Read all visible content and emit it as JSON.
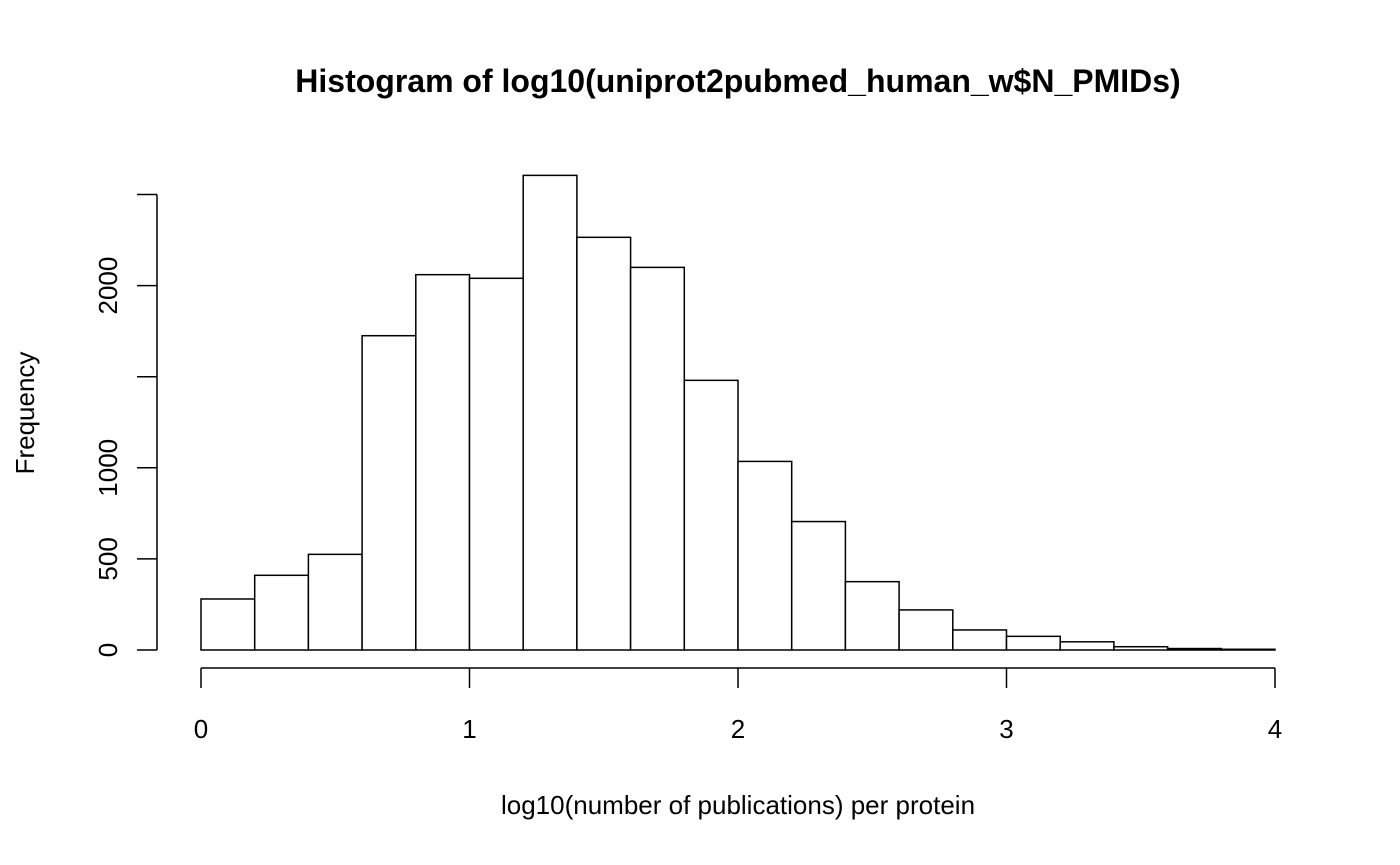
{
  "chart_data": {
    "type": "bar",
    "title": "Histogram of log10(uniprot2pubmed_human_w$N_PMIDs)",
    "xlabel": "log10(number of publications) per protein",
    "ylabel": "Frequency",
    "bins": [
      {
        "x0": 0.0,
        "x1": 0.2,
        "count": 280
      },
      {
        "x0": 0.2,
        "x1": 0.4,
        "count": 410
      },
      {
        "x0": 0.4,
        "x1": 0.6,
        "count": 525
      },
      {
        "x0": 0.6,
        "x1": 0.8,
        "count": 1725
      },
      {
        "x0": 0.8,
        "x1": 1.0,
        "count": 2060
      },
      {
        "x0": 1.0,
        "x1": 1.2,
        "count": 2040
      },
      {
        "x0": 1.2,
        "x1": 1.4,
        "count": 2605
      },
      {
        "x0": 1.4,
        "x1": 1.6,
        "count": 2265
      },
      {
        "x0": 1.6,
        "x1": 1.8,
        "count": 2100
      },
      {
        "x0": 1.8,
        "x1": 2.0,
        "count": 1480
      },
      {
        "x0": 2.0,
        "x1": 2.2,
        "count": 1035
      },
      {
        "x0": 2.2,
        "x1": 2.4,
        "count": 705
      },
      {
        "x0": 2.4,
        "x1": 2.6,
        "count": 375
      },
      {
        "x0": 2.6,
        "x1": 2.8,
        "count": 220
      },
      {
        "x0": 2.8,
        "x1": 3.0,
        "count": 110
      },
      {
        "x0": 3.0,
        "x1": 3.2,
        "count": 75
      },
      {
        "x0": 3.2,
        "x1": 3.4,
        "count": 45
      },
      {
        "x0": 3.4,
        "x1": 3.6,
        "count": 18
      },
      {
        "x0": 3.6,
        "x1": 3.8,
        "count": 8
      },
      {
        "x0": 3.8,
        "x1": 4.0,
        "count": 4
      }
    ],
    "xlim": [
      0,
      4
    ],
    "ylim": [
      0,
      2605
    ],
    "x_ticks": [
      {
        "value": 0,
        "label": "0"
      },
      {
        "value": 1,
        "label": "1"
      },
      {
        "value": 2,
        "label": "2"
      },
      {
        "value": 3,
        "label": "3"
      },
      {
        "value": 4,
        "label": "4"
      }
    ],
    "y_ticks": [
      {
        "value": 0,
        "label": "0"
      },
      {
        "value": 500,
        "label": "500"
      },
      {
        "value": 1000,
        "label": "1000"
      },
      {
        "value": 1500,
        "label": ""
      },
      {
        "value": 2000,
        "label": "2000"
      },
      {
        "value": 2500,
        "label": ""
      }
    ],
    "y_axis_max": 2500,
    "grid": false,
    "legend": "none",
    "bar_fill": "#ffffff",
    "bar_stroke": "#000000"
  }
}
